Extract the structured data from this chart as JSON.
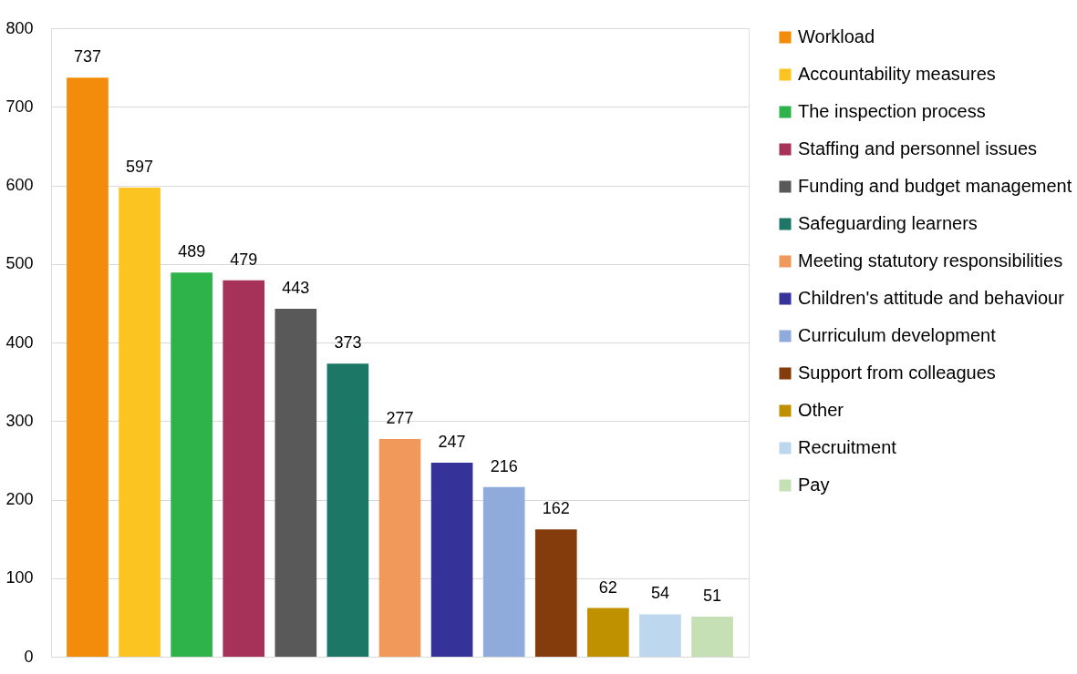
{
  "chart_data": {
    "type": "bar",
    "categories": [
      null,
      null,
      null,
      null,
      null,
      null,
      null,
      null,
      null,
      null,
      null,
      null,
      null
    ],
    "series": [
      {
        "name": "Workload",
        "color": "#f28c0a",
        "values": [
          737,
          null,
          null,
          null,
          null,
          null,
          null,
          null,
          null,
          null,
          null,
          null,
          null
        ]
      },
      {
        "name": "Accountability measures",
        "color": "#fbc420",
        "values": [
          null,
          597,
          null,
          null,
          null,
          null,
          null,
          null,
          null,
          null,
          null,
          null,
          null
        ]
      },
      {
        "name": "The inspection process",
        "color": "#2db34a",
        "values": [
          null,
          null,
          489,
          null,
          null,
          null,
          null,
          null,
          null,
          null,
          null,
          null,
          null
        ]
      },
      {
        "name": "Staffing and personnel issues",
        "color": "#a6325a",
        "values": [
          null,
          null,
          null,
          479,
          null,
          null,
          null,
          null,
          null,
          null,
          null,
          null,
          null
        ]
      },
      {
        "name": "Funding and budget management",
        "color": "#595959",
        "values": [
          null,
          null,
          null,
          null,
          443,
          null,
          null,
          null,
          null,
          null,
          null,
          null,
          null
        ]
      },
      {
        "name": "Safeguarding learners",
        "color": "#1d7766",
        "values": [
          null,
          null,
          null,
          null,
          null,
          373,
          null,
          null,
          null,
          null,
          null,
          null,
          null
        ]
      },
      {
        "name": "Meeting statutory responsibilities",
        "color": "#f0995a",
        "values": [
          null,
          null,
          null,
          null,
          null,
          null,
          277,
          null,
          null,
          null,
          null,
          null,
          null
        ]
      },
      {
        "name": "Children's attitude and behaviour",
        "color": "#35329a",
        "values": [
          null,
          null,
          null,
          null,
          null,
          null,
          null,
          247,
          null,
          null,
          null,
          null,
          null
        ]
      },
      {
        "name": "Curriculum development",
        "color": "#8fabdc",
        "values": [
          null,
          null,
          null,
          null,
          null,
          null,
          null,
          null,
          216,
          null,
          null,
          null,
          null
        ]
      },
      {
        "name": "Support from colleagues",
        "color": "#843c0c",
        "values": [
          null,
          null,
          null,
          null,
          null,
          null,
          null,
          null,
          null,
          162,
          null,
          null,
          null
        ]
      },
      {
        "name": "Other",
        "color": "#bf9000",
        "values": [
          null,
          null,
          null,
          null,
          null,
          null,
          null,
          null,
          null,
          null,
          62,
          null,
          null
        ]
      },
      {
        "name": "Recruitment",
        "color": "#bdd7ee",
        "values": [
          null,
          null,
          null,
          null,
          null,
          null,
          null,
          null,
          null,
          null,
          null,
          54,
          null
        ]
      },
      {
        "name": "Pay",
        "color": "#c5e0b4",
        "values": [
          null,
          null,
          null,
          null,
          null,
          null,
          null,
          null,
          null,
          null,
          null,
          null,
          51
        ]
      }
    ],
    "ylim": [
      0,
      800
    ],
    "yticks": [
      0,
      100,
      200,
      300,
      400,
      500,
      600,
      700,
      800
    ],
    "grid": "y",
    "legend": "right",
    "tick_labels": "y",
    "data_labels": true
  }
}
